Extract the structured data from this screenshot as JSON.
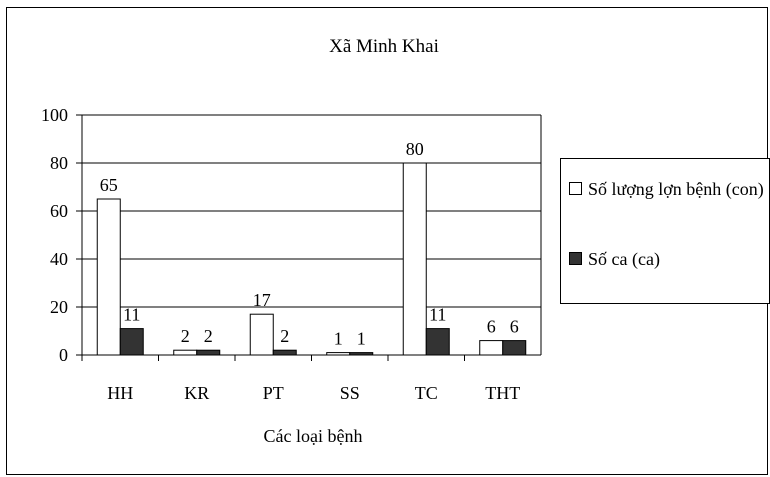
{
  "chart_data": {
    "type": "bar",
    "title": "Xã Minh Khai",
    "xlabel": "Các loại bệnh",
    "ylabel": "",
    "categories": [
      "HH",
      "KR",
      "PT",
      "SS",
      "TC",
      "THT"
    ],
    "series": [
      {
        "name": "Số lượng lợn bệnh (con)",
        "values": [
          65,
          2,
          17,
          1,
          80,
          6
        ],
        "color": "#ffffff"
      },
      {
        "name": "Số ca (ca)",
        "values": [
          11,
          2,
          2,
          1,
          11,
          6
        ],
        "color": "#333333"
      }
    ],
    "ylim": [
      0,
      100
    ],
    "yticks": [
      "0",
      "20",
      "40",
      "60",
      "80",
      "100"
    ],
    "grid": true,
    "legend_position": "right"
  }
}
